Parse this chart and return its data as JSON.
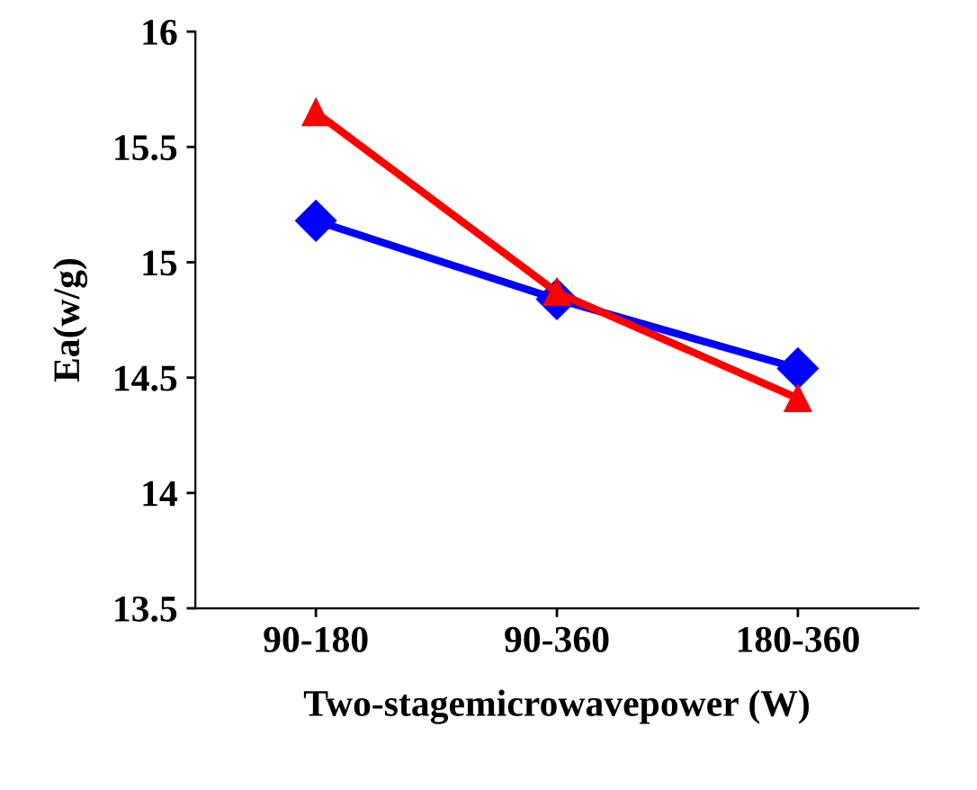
{
  "chart_data": {
    "type": "line",
    "xlabel": "Two-stagemicrowavepower (W)",
    "ylabel": "Ea(w/g)",
    "categories": [
      "90-180",
      "90-360",
      "180-360"
    ],
    "series": [
      {
        "color": "#0000ff",
        "marker": "diamond",
        "values": [
          15.18,
          14.84,
          14.54
        ]
      },
      {
        "color": "#ff0000",
        "marker": "triangle",
        "values": [
          15.65,
          14.87,
          14.41
        ]
      }
    ],
    "ylim": [
      13.5,
      16
    ],
    "yticks": [
      13.5,
      14,
      14.5,
      15,
      15.5,
      16
    ],
    "grid": false,
    "legend": false
  }
}
